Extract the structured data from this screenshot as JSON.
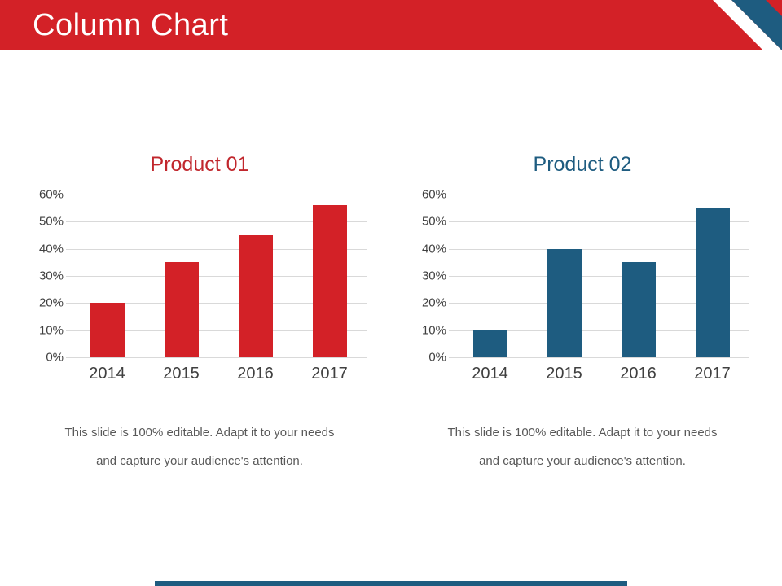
{
  "slide": {
    "title": "Column Chart"
  },
  "caption": {
    "line1": "This slide is 100% editable. Adapt it to your needs",
    "line2": "and capture your audience's attention."
  },
  "colors": {
    "header_red": "#d32127",
    "ribbon_blue": "#1e5c80",
    "grid_line": "#d9d9d9",
    "axis_text": "#404040",
    "caption_text": "#595959",
    "footer_bar": "#1e5c80"
  },
  "chart_data": [
    {
      "type": "bar",
      "title": "Product 01",
      "title_color": "#c1272d",
      "bar_color": "#d32127",
      "categories": [
        "2014",
        "2015",
        "2016",
        "2017"
      ],
      "values": [
        20,
        35,
        45,
        56
      ],
      "ylim": [
        0,
        60
      ],
      "ytick_labels": [
        "60%",
        "50%",
        "40%",
        "30%",
        "20%",
        "10%",
        "0%"
      ],
      "grid": true,
      "legend": "none",
      "xlabel": "",
      "ylabel": ""
    },
    {
      "type": "bar",
      "title": "Product 02",
      "title_color": "#1e5c80",
      "bar_color": "#1e5c80",
      "categories": [
        "2014",
        "2015",
        "2016",
        "2017"
      ],
      "values": [
        10,
        40,
        35,
        55
      ],
      "ylim": [
        0,
        60
      ],
      "ytick_labels": [
        "60%",
        "50%",
        "40%",
        "30%",
        "20%",
        "10%",
        "0%"
      ],
      "grid": true,
      "legend": "none",
      "xlabel": "",
      "ylabel": ""
    }
  ]
}
